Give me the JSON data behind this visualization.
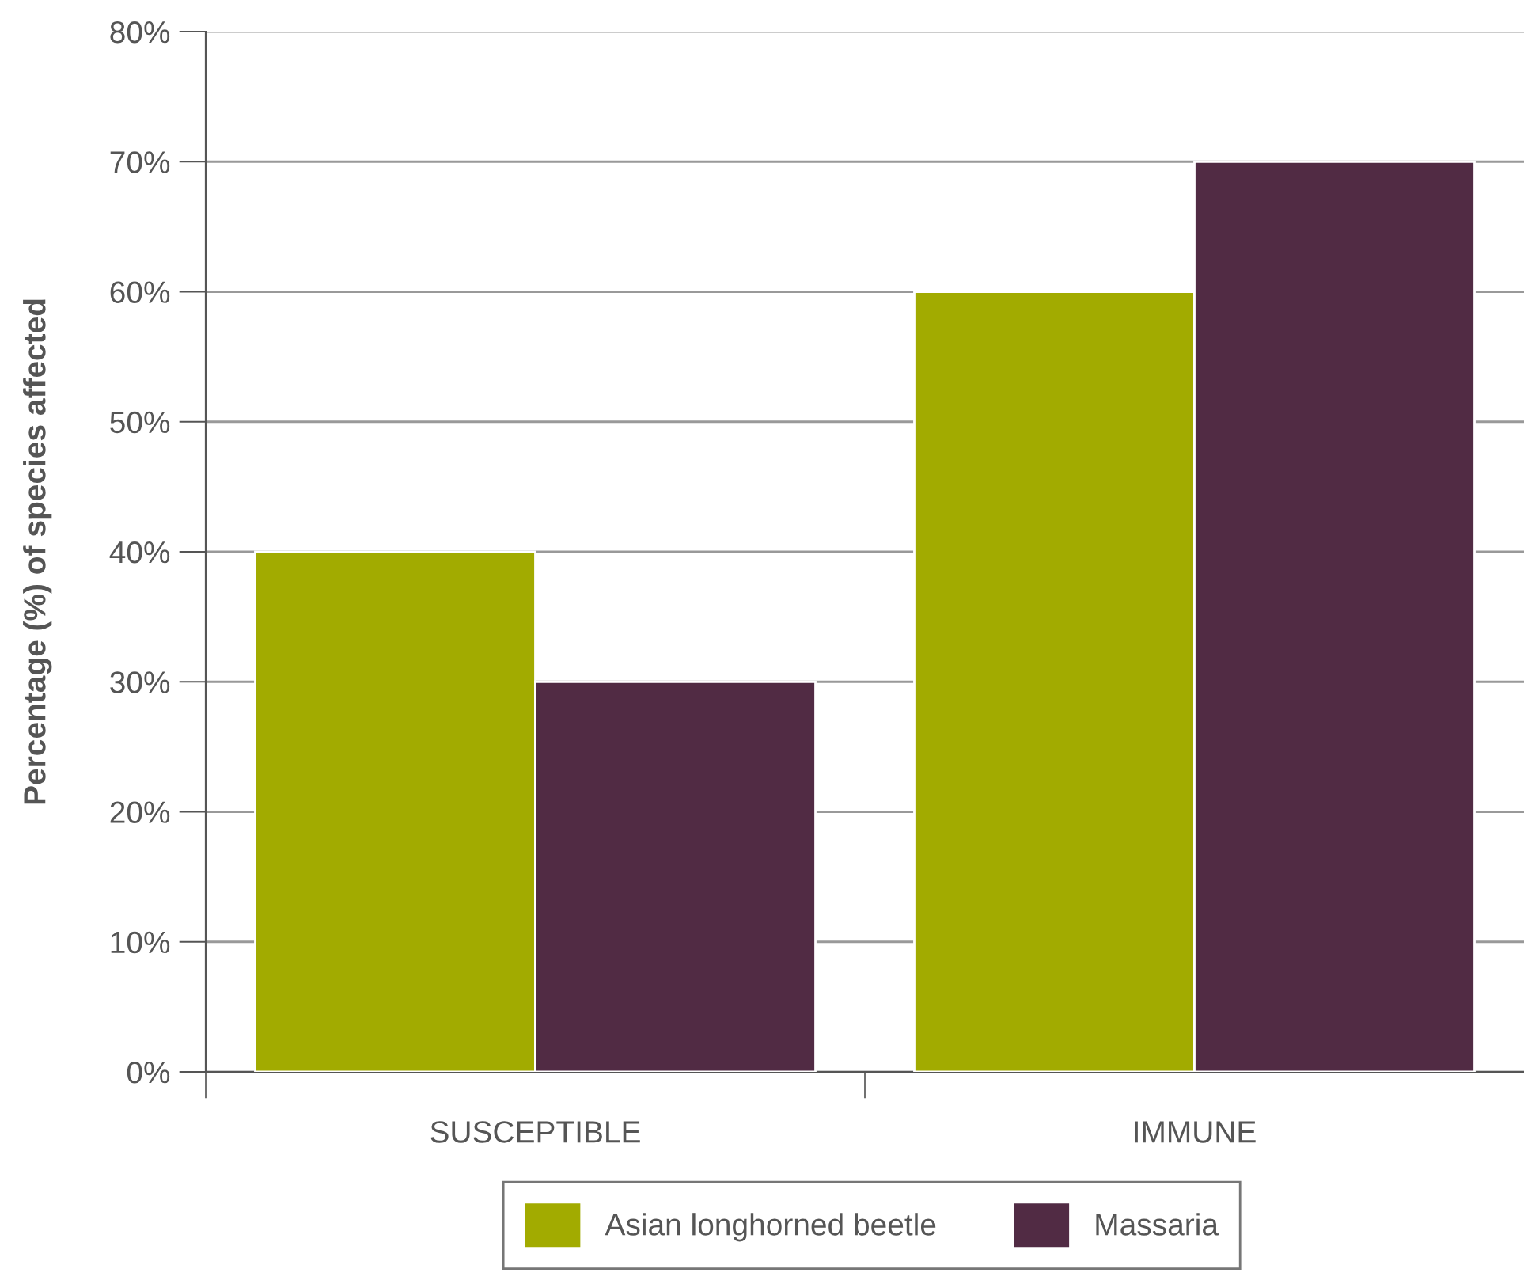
{
  "chart_data": {
    "type": "bar",
    "ylabel": "Percentage (%) of species affected",
    "categories": [
      "SUSCEPTIBLE",
      "IMMUNE"
    ],
    "series": [
      {
        "name": "Asian longhorned beetle",
        "color": "#a2ab00",
        "values": [
          40,
          60
        ]
      },
      {
        "name": "Massaria",
        "color": "#512b44",
        "values": [
          30,
          70
        ]
      }
    ],
    "ylim": [
      0,
      80
    ],
    "yticks": [
      {
        "value": 0,
        "label": "0%"
      },
      {
        "value": 10,
        "label": "10%"
      },
      {
        "value": 20,
        "label": "20%"
      },
      {
        "value": 30,
        "label": "30%"
      },
      {
        "value": 40,
        "label": "40%"
      },
      {
        "value": 50,
        "label": "50%"
      },
      {
        "value": 60,
        "label": "60%"
      },
      {
        "value": 70,
        "label": "70%"
      },
      {
        "value": 80,
        "label": "80%"
      }
    ],
    "grid": "y",
    "legend": "bottom"
  }
}
